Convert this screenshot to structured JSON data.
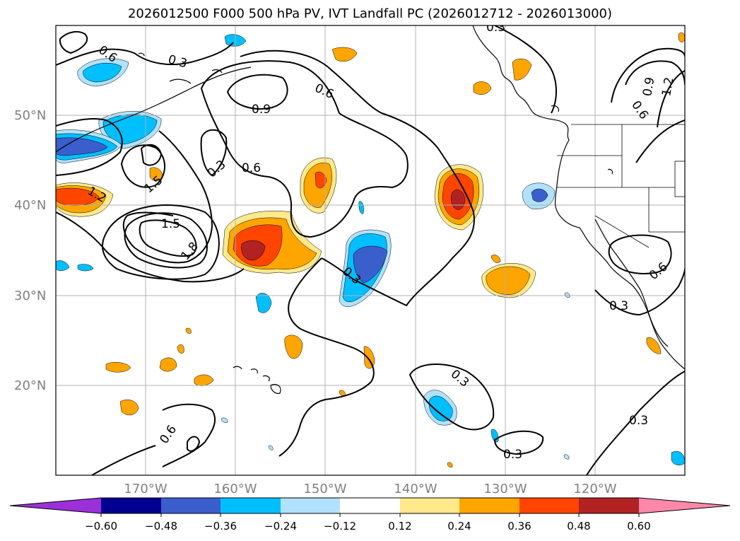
{
  "title": "2026012500 F000 500 hPa PV, IVT Landfall PC (2026012712 - 2026013000)",
  "map": {
    "lon_range": [
      -180,
      -110
    ],
    "lat_range": [
      10,
      60
    ],
    "lat_ticks": [
      {
        "value": 20,
        "label": "20°N"
      },
      {
        "value": 30,
        "label": "30°N"
      },
      {
        "value": 40,
        "label": "40°N"
      },
      {
        "value": 50,
        "label": "50°N"
      }
    ],
    "lon_ticks": [
      {
        "value": -170,
        "label": "170°W"
      },
      {
        "value": -160,
        "label": "160°W"
      },
      {
        "value": -150,
        "label": "150°W"
      },
      {
        "value": -140,
        "label": "140°W"
      },
      {
        "value": -130,
        "label": "130°W"
      },
      {
        "value": -120,
        "label": "120°W"
      }
    ],
    "contour_labels": [
      "0.6",
      "0.3",
      "0.9",
      "0.6",
      "0.3",
      "0.6",
      "1.5",
      "1.2",
      "1.5",
      "1.8",
      "0.3",
      "0.3",
      "0.3",
      "0.6",
      "0.3",
      "0.3",
      "0.6",
      "0.6",
      "1.2",
      "0.9",
      "0.3"
    ]
  },
  "colorbar": {
    "ticks": [
      "−0.60",
      "−0.48",
      "−0.36",
      "−0.24",
      "−0.12",
      "0.12",
      "0.24",
      "0.36",
      "0.48",
      "0.60"
    ],
    "colors": [
      "#9b30d9",
      "#000090",
      "#3a5fcd",
      "#00bfff",
      "#b0e2ff",
      "#ffffff",
      "#ffe98a",
      "#ffa500",
      "#ff4500",
      "#b22222",
      "#ff88aa"
    ]
  }
}
